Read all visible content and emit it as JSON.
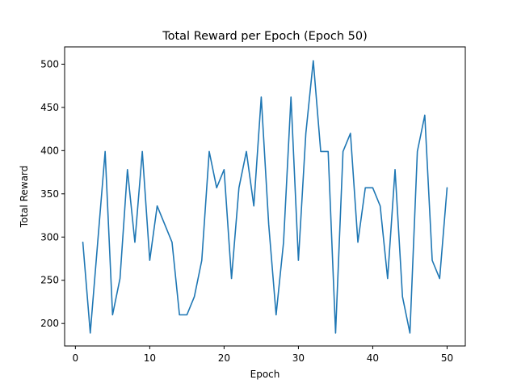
{
  "chart_data": {
    "type": "line",
    "title": "Total Reward per Epoch (Epoch 50)",
    "xlabel": "Epoch",
    "ylabel": "Total Reward",
    "xlim": [
      -1.45,
      52.45
    ],
    "ylim": [
      174,
      520
    ],
    "xticks": [
      0,
      10,
      20,
      30,
      40,
      50
    ],
    "xtick_labels": [
      "0",
      "10",
      "20",
      "30",
      "40",
      "50"
    ],
    "yticks": [
      200,
      250,
      300,
      350,
      400,
      450,
      500
    ],
    "ytick_labels": [
      "200",
      "250",
      "300",
      "350",
      "400",
      "450",
      "500"
    ],
    "grid": false,
    "series": [
      {
        "name": "Total Reward",
        "color": "#1f77b4",
        "x": [
          1,
          2,
          3,
          4,
          5,
          6,
          7,
          8,
          9,
          10,
          11,
          12,
          13,
          14,
          15,
          16,
          17,
          18,
          19,
          20,
          21,
          22,
          23,
          24,
          25,
          26,
          27,
          28,
          29,
          30,
          31,
          32,
          33,
          34,
          35,
          36,
          37,
          38,
          39,
          40,
          41,
          42,
          43,
          44,
          45,
          46,
          47,
          48,
          49,
          50
        ],
        "values": [
          294,
          189,
          294,
          399,
          210,
          252,
          378,
          294,
          399,
          273,
          336,
          315,
          294,
          210,
          210,
          231,
          273,
          399,
          357,
          378,
          252,
          357,
          399,
          336,
          462,
          315,
          210,
          294,
          462,
          273,
          420,
          504,
          399,
          399,
          189,
          399,
          420,
          294,
          357,
          357,
          336,
          252,
          378,
          231,
          189,
          399,
          441,
          273,
          252,
          357
        ]
      }
    ]
  }
}
